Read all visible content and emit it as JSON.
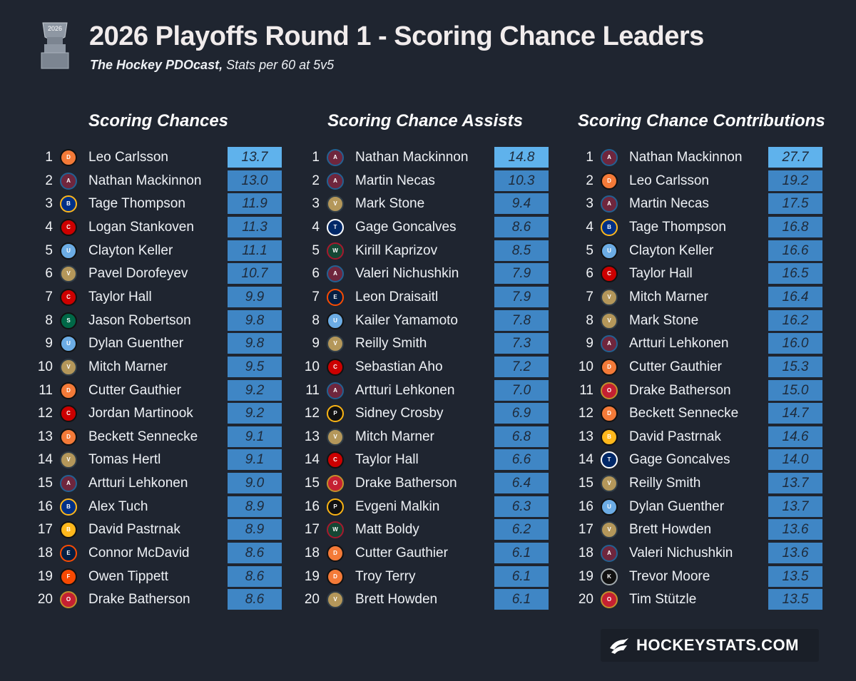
{
  "header": {
    "title": "2026 Playoffs Round 1 - Scoring Chance Leaders",
    "subtitle_bold": "The Hockey PDOcast,",
    "subtitle_rest": " Stats per 60 at 5v5",
    "trophy_year": "2026"
  },
  "brand": {
    "text": "HOCKEYSTATS.COM"
  },
  "colors": {
    "background": "#1f2530",
    "bar": "#3f86c5",
    "bar_top": "#5fb2ec"
  },
  "chart_data": [
    {
      "type": "table",
      "title": "Scoring Chances",
      "ranks": [
        "1",
        "2",
        "3",
        "4",
        "5",
        "6",
        "7",
        "8",
        "9",
        "10",
        "11",
        "12",
        "13",
        "14",
        "15",
        "16",
        "17",
        "18",
        "19",
        "20"
      ],
      "players": [
        "Leo Carlsson",
        "Nathan Mackinnon",
        "Tage Thompson",
        "Logan Stankoven",
        "Clayton Keller",
        "Pavel Dorofeyev",
        "Taylor Hall",
        "Jason Robertson",
        "Dylan Guenther",
        "Mitch Marner",
        "Cutter Gauthier",
        "Jordan Martinook",
        "Beckett Sennecke",
        "Tomas Hertl",
        "Artturi Lehkonen",
        "Alex Tuch",
        "David Pastrnak",
        "Connor McDavid",
        "Owen Tippett",
        "Drake Batherson"
      ],
      "teams": [
        "ducks-logo",
        "avalanche-logo",
        "sabres-logo",
        "hurricanes-logo",
        "utah-logo",
        "golden-knights-logo",
        "hurricanes-logo",
        "stars-logo",
        "utah-logo",
        "golden-knights-logo",
        "ducks-logo",
        "hurricanes-logo",
        "ducks-logo",
        "golden-knights-logo",
        "avalanche-logo",
        "sabres-logo",
        "bruins-logo",
        "oilers-logo",
        "flyers-logo",
        "senators-logo"
      ],
      "values": [
        "13.7",
        "13.0",
        "11.9",
        "11.3",
        "11.1",
        "10.7",
        "9.9",
        "9.8",
        "9.8",
        "9.5",
        "9.2",
        "9.2",
        "9.1",
        "9.1",
        "9.0",
        "8.9",
        "8.9",
        "8.6",
        "8.6",
        "8.6"
      ]
    },
    {
      "type": "table",
      "title": "Scoring Chance Assists",
      "ranks": [
        "1",
        "2",
        "3",
        "4",
        "5",
        "6",
        "7",
        "8",
        "9",
        "10",
        "11",
        "12",
        "13",
        "14",
        "15",
        "16",
        "17",
        "18",
        "19",
        "20"
      ],
      "players": [
        "Nathan Mackinnon",
        "Martin Necas",
        "Mark Stone",
        "Gage Goncalves",
        "Kirill Kaprizov",
        "Valeri Nichushkin",
        "Leon Draisaitl",
        "Kailer Yamamoto",
        "Reilly Smith",
        "Sebastian Aho",
        "Artturi Lehkonen",
        "Sidney Crosby",
        "Mitch Marner",
        "Taylor Hall",
        "Drake Batherson",
        "Evgeni Malkin",
        "Matt Boldy",
        "Cutter Gauthier",
        "Troy Terry",
        "Brett Howden"
      ],
      "teams": [
        "avalanche-logo",
        "avalanche-logo",
        "golden-knights-logo",
        "lightning-logo",
        "wild-logo",
        "avalanche-logo",
        "oilers-logo",
        "utah-logo",
        "golden-knights-logo",
        "hurricanes-logo",
        "avalanche-logo",
        "penguins-logo",
        "golden-knights-logo",
        "hurricanes-logo",
        "senators-logo",
        "penguins-logo",
        "wild-logo",
        "ducks-logo",
        "ducks-logo",
        "golden-knights-logo"
      ],
      "values": [
        "14.8",
        "10.3",
        "9.4",
        "8.6",
        "8.5",
        "7.9",
        "7.9",
        "7.8",
        "7.3",
        "7.2",
        "7.0",
        "6.9",
        "6.8",
        "6.6",
        "6.4",
        "6.3",
        "6.2",
        "6.1",
        "6.1",
        "6.1"
      ]
    },
    {
      "type": "table",
      "title": "Scoring Chance Contributions",
      "ranks": [
        "1",
        "2",
        "3",
        "4",
        "5",
        "6",
        "7",
        "8",
        "9",
        "10",
        "11",
        "12",
        "13",
        "14",
        "15",
        "16",
        "17",
        "18",
        "19",
        "20"
      ],
      "players": [
        "Nathan Mackinnon",
        "Leo Carlsson",
        "Martin Necas",
        "Tage Thompson",
        "Clayton Keller",
        "Taylor Hall",
        "Mitch Marner",
        "Mark Stone",
        "Artturi Lehkonen",
        "Cutter Gauthier",
        "Drake Batherson",
        "Beckett Sennecke",
        "David Pastrnak",
        "Gage Goncalves",
        "Reilly Smith",
        "Dylan Guenther",
        "Brett Howden",
        "Valeri Nichushkin",
        "Trevor Moore",
        "Tim Stützle"
      ],
      "teams": [
        "avalanche-logo",
        "ducks-logo",
        "avalanche-logo",
        "sabres-logo",
        "utah-logo",
        "hurricanes-logo",
        "golden-knights-logo",
        "golden-knights-logo",
        "avalanche-logo",
        "ducks-logo",
        "senators-logo",
        "ducks-logo",
        "bruins-logo",
        "lightning-logo",
        "golden-knights-logo",
        "utah-logo",
        "golden-knights-logo",
        "avalanche-logo",
        "kings-logo",
        "senators-logo"
      ],
      "values": [
        "27.7",
        "19.2",
        "17.5",
        "16.8",
        "16.6",
        "16.5",
        "16.4",
        "16.2",
        "16.0",
        "15.3",
        "15.0",
        "14.7",
        "14.6",
        "14.0",
        "13.7",
        "13.7",
        "13.6",
        "13.6",
        "13.5",
        "13.5"
      ]
    }
  ]
}
